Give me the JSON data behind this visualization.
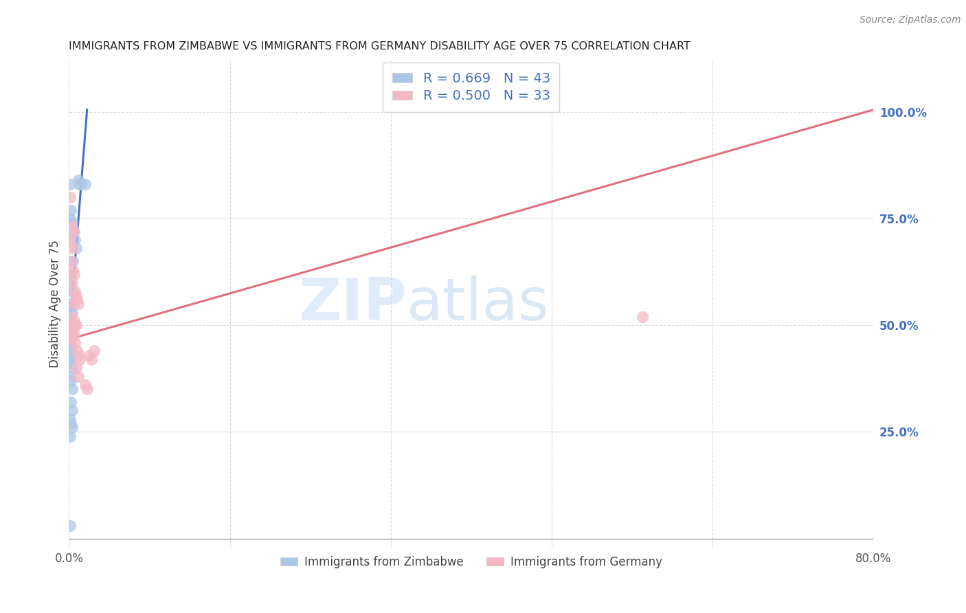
{
  "title": "IMMIGRANTS FROM ZIMBABWE VS IMMIGRANTS FROM GERMANY DISABILITY AGE OVER 75 CORRELATION CHART",
  "source": "Source: ZipAtlas.com",
  "ylabel": "Disability Age Over 75",
  "legend_label1": "Immigrants from Zimbabwe",
  "legend_label2": "Immigrants from Germany",
  "r1": 0.669,
  "n1": 43,
  "r2": 0.5,
  "n2": 33,
  "xlim": [
    0.0,
    0.8
  ],
  "ylim": [
    -0.02,
    1.12
  ],
  "xtick_vals": [
    0.0,
    0.16,
    0.32,
    0.48,
    0.64,
    0.8
  ],
  "xtick_labels": [
    "0.0%",
    "",
    "",
    "",
    "",
    "80.0%"
  ],
  "yticks_right": [
    0.25,
    0.5,
    0.75,
    1.0
  ],
  "ytick_labels_right": [
    "25.0%",
    "50.0%",
    "75.0%",
    "100.0%"
  ],
  "color_blue": "#adc6e8",
  "color_pink": "#f4b8c4",
  "color_blue_line": "#4472c4",
  "color_pink_line": "#e07080",
  "color_blue_text": "#4472c4",
  "color_right_axis": "#4472c4",
  "scatter_blue": [
    [
      0.001,
      0.83
    ],
    [
      0.006,
      0.7
    ],
    [
      0.007,
      0.68
    ],
    [
      0.009,
      0.84
    ],
    [
      0.01,
      0.83
    ],
    [
      0.012,
      0.83
    ],
    [
      0.016,
      0.83
    ],
    [
      0.001,
      0.75
    ],
    [
      0.002,
      0.77
    ],
    [
      0.003,
      0.74
    ],
    [
      0.004,
      0.72
    ],
    [
      0.001,
      0.6
    ],
    [
      0.002,
      0.62
    ],
    [
      0.003,
      0.58
    ],
    [
      0.001,
      0.54
    ],
    [
      0.002,
      0.55
    ],
    [
      0.003,
      0.53
    ],
    [
      0.001,
      0.5
    ],
    [
      0.002,
      0.51
    ],
    [
      0.003,
      0.5
    ],
    [
      0.004,
      0.5
    ],
    [
      0.001,
      0.48
    ],
    [
      0.002,
      0.49
    ],
    [
      0.003,
      0.48
    ],
    [
      0.001,
      0.46
    ],
    [
      0.002,
      0.47
    ],
    [
      0.001,
      0.44
    ],
    [
      0.002,
      0.45
    ],
    [
      0.003,
      0.43
    ],
    [
      0.001,
      0.42
    ],
    [
      0.002,
      0.41
    ],
    [
      0.003,
      0.4
    ],
    [
      0.001,
      0.38
    ],
    [
      0.002,
      0.37
    ],
    [
      0.003,
      0.35
    ],
    [
      0.002,
      0.32
    ],
    [
      0.003,
      0.3
    ],
    [
      0.001,
      0.28
    ],
    [
      0.002,
      0.27
    ],
    [
      0.003,
      0.26
    ],
    [
      0.001,
      0.24
    ],
    [
      0.001,
      0.03
    ],
    [
      0.004,
      0.65
    ]
  ],
  "scatter_pink": [
    [
      0.001,
      0.8
    ],
    [
      0.003,
      0.73
    ],
    [
      0.005,
      0.72
    ],
    [
      0.001,
      0.7
    ],
    [
      0.003,
      0.68
    ],
    [
      0.002,
      0.65
    ],
    [
      0.004,
      0.63
    ],
    [
      0.005,
      0.62
    ],
    [
      0.003,
      0.6
    ],
    [
      0.006,
      0.58
    ],
    [
      0.007,
      0.57
    ],
    [
      0.005,
      0.55
    ],
    [
      0.008,
      0.56
    ],
    [
      0.009,
      0.55
    ],
    [
      0.003,
      0.52
    ],
    [
      0.005,
      0.51
    ],
    [
      0.006,
      0.5
    ],
    [
      0.007,
      0.5
    ],
    [
      0.004,
      0.49
    ],
    [
      0.005,
      0.48
    ],
    [
      0.003,
      0.47
    ],
    [
      0.006,
      0.46
    ],
    [
      0.008,
      0.44
    ],
    [
      0.01,
      0.43
    ],
    [
      0.011,
      0.42
    ],
    [
      0.007,
      0.4
    ],
    [
      0.009,
      0.38
    ],
    [
      0.016,
      0.36
    ],
    [
      0.018,
      0.35
    ],
    [
      0.02,
      0.43
    ],
    [
      0.022,
      0.42
    ],
    [
      0.57,
      0.52
    ],
    [
      0.025,
      0.44
    ]
  ],
  "trendline_blue": [
    [
      0.0,
      0.468
    ],
    [
      0.018,
      1.005
    ]
  ],
  "trendline_pink": [
    [
      0.0,
      0.467
    ],
    [
      0.8,
      1.005
    ]
  ],
  "watermark_zip": "ZIP",
  "watermark_atlas": "atlas"
}
